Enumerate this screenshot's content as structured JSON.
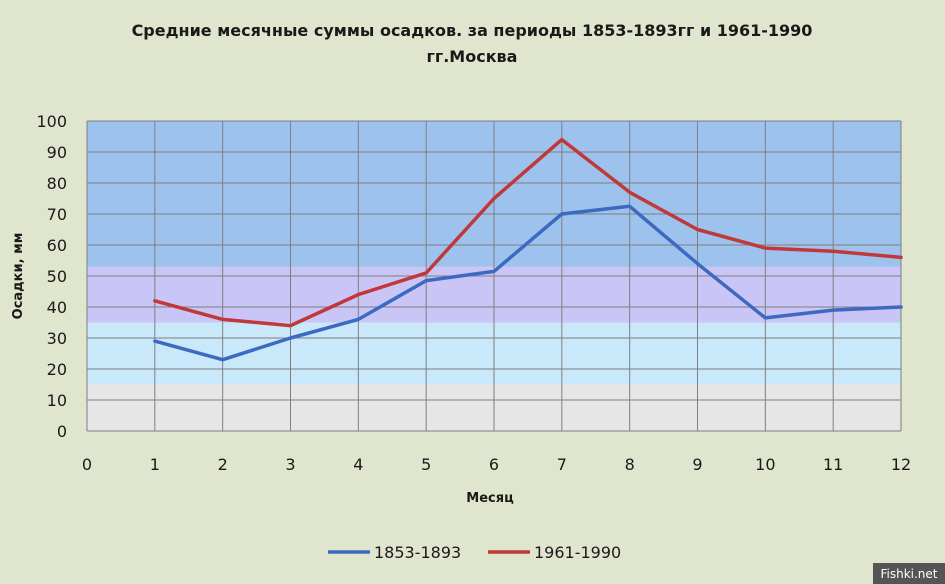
{
  "chart_data": {
    "type": "line",
    "title": "Средние месячные суммы осадков. за периоды 1853-1893гг и 1961-1990",
    "subtitle": "гг.Москва",
    "xlabel": "Месяц",
    "ylabel": "Осадки, мм",
    "xlim": [
      0,
      12
    ],
    "ylim": [
      0,
      100
    ],
    "xticks": [
      "0",
      "1",
      "2",
      "3",
      "4",
      "5",
      "6",
      "7",
      "8",
      "9",
      "10",
      "11",
      "12"
    ],
    "yticks": [
      "0",
      "10",
      "20",
      "30",
      "40",
      "50",
      "60",
      "70",
      "80",
      "90",
      "100"
    ],
    "grid": true,
    "legend_position": "bottom",
    "x": [
      1,
      2,
      3,
      4,
      5,
      6,
      7,
      8,
      9,
      10,
      11,
      12
    ],
    "series": [
      {
        "name": "1853-1893",
        "color": "#3c6ac0",
        "values": [
          29,
          23,
          30,
          36,
          48.5,
          51.5,
          70,
          72.5,
          54,
          36.5,
          39,
          40
        ]
      },
      {
        "name": "1961-1990",
        "color": "#c0383a",
        "values": [
          42,
          36,
          34,
          44,
          51,
          75,
          94,
          77,
          65,
          59,
          58,
          56
        ]
      }
    ],
    "background_bands": [
      {
        "from": 0,
        "to": 15,
        "color": "#e6e6e6"
      },
      {
        "from": 15,
        "to": 35,
        "color": "#c9e9fb"
      },
      {
        "from": 35,
        "to": 53,
        "color": "#c9c6f7"
      },
      {
        "from": 53,
        "to": 100,
        "color": "#9ec2ee"
      }
    ]
  },
  "watermark": "Fishki.net"
}
